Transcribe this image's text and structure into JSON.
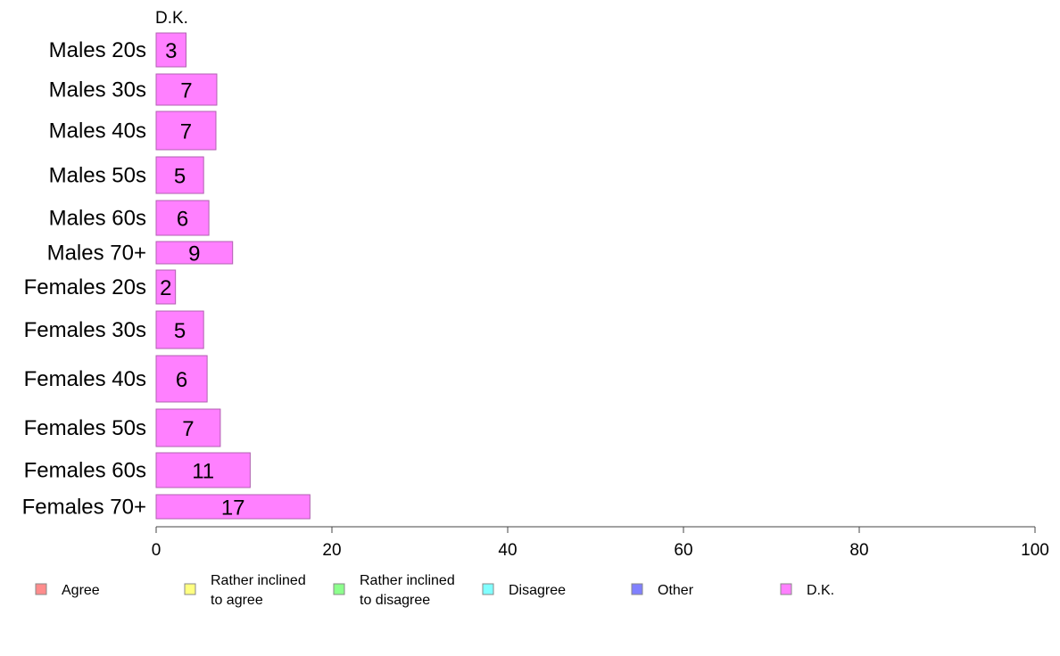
{
  "chart_data": {
    "type": "bar",
    "orientation": "horizontal",
    "column_title": "D.K.",
    "categories": [
      "Males 20s",
      "Males 30s",
      "Males 40s",
      "Males 50s",
      "Males 60s",
      "Males 70+",
      "Females 20s",
      "Females 30s",
      "Females 40s",
      "Females 50s",
      "Females 60s",
      "Females 70+"
    ],
    "values": [
      3.4,
      6.9,
      6.8,
      5.4,
      6.0,
      8.7,
      2.2,
      5.4,
      5.8,
      7.3,
      10.7,
      17.5
    ],
    "value_labels": [
      "3",
      "7",
      "7",
      "5",
      "6",
      "9",
      "2",
      "5",
      "6",
      "7",
      "11",
      "17"
    ],
    "xlim": [
      0,
      100
    ],
    "x_ticks": [
      0,
      20,
      40,
      60,
      80,
      100
    ],
    "x_tick_labels": [
      "0",
      "20",
      "40",
      "60",
      "80",
      "100"
    ],
    "grid": false,
    "bar_color": "#ff80ff",
    "legend_position": "bottom",
    "legend": [
      {
        "lines": [
          "Agree"
        ],
        "color": "#ff8c8c"
      },
      {
        "lines": [
          "Rather inclined",
          "to agree"
        ],
        "color": "#ffff80"
      },
      {
        "lines": [
          "Rather inclined",
          "to disagree"
        ],
        "color": "#8cff8c"
      },
      {
        "lines": [
          "Disagree"
        ],
        "color": "#80ffff"
      },
      {
        "lines": [
          "Other"
        ],
        "color": "#8080ff"
      },
      {
        "lines": [
          "D.K."
        ],
        "color": "#ff80ff"
      }
    ]
  }
}
